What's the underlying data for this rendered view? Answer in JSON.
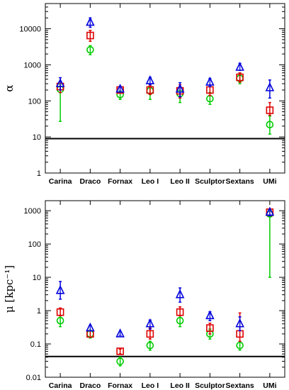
{
  "chart_data": [
    {
      "type": "scatter",
      "ylabel": "α",
      "yscale": "log",
      "ylim": [
        1,
        50000
      ],
      "yticks": [
        "1",
        "10",
        "100",
        "1000",
        "10000"
      ],
      "categories": [
        "Carina",
        "Draco",
        "Fornax",
        "Leo I",
        "Leo II",
        "Sculptor",
        "Sextans",
        "UMi"
      ],
      "reference_line": 9,
      "series": [
        {
          "marker": "triangle",
          "color": "#0000dd",
          "values": [
            300,
            15000,
            210,
            360,
            210,
            330,
            850,
            230
          ],
          "err_low": [
            200,
            11000,
            180,
            280,
            130,
            250,
            700,
            120
          ],
          "err_high": [
            440,
            20000,
            250,
            450,
            320,
            420,
            1100,
            380
          ]
        },
        {
          "marker": "square",
          "color": "#dd0000",
          "values": [
            250,
            6500,
            200,
            200,
            190,
            200,
            450,
            55
          ],
          "err_low": [
            170,
            4500,
            170,
            150,
            120,
            140,
            330,
            40
          ],
          "err_high": [
            330,
            9000,
            235,
            260,
            280,
            280,
            600,
            90
          ]
        },
        {
          "marker": "circle",
          "color": "#00cc00",
          "values": [
            210,
            2600,
            150,
            190,
            160,
            115,
            420,
            22
          ],
          "err_low": [
            27,
            1900,
            110,
            110,
            90,
            80,
            300,
            12
          ],
          "err_high": [
            290,
            3400,
            190,
            260,
            230,
            170,
            560,
            38
          ]
        }
      ]
    },
    {
      "type": "scatter",
      "ylabel": "μ  [kpc⁻¹]",
      "yscale": "log",
      "ylim": [
        0.01,
        2000
      ],
      "yticks": [
        "0.01",
        "0.1",
        "1",
        "10",
        "100",
        "1000"
      ],
      "categories": [
        "Carina",
        "Draco",
        "Fornax",
        "Leo I",
        "Leo II",
        "Sculptor",
        "Sextans",
        "UMi"
      ],
      "reference_line": 0.042,
      "series": [
        {
          "marker": "triangle",
          "color": "#0000dd",
          "values": [
            4,
            0.3,
            0.2,
            0.4,
            3,
            0.7,
            0.4,
            900
          ],
          "err_low": [
            2.2,
            0.25,
            0.18,
            0.28,
            1.8,
            0.5,
            0.25,
            700
          ],
          "err_high": [
            7.5,
            0.36,
            0.23,
            0.52,
            4.8,
            0.92,
            0.65,
            1050
          ]
        },
        {
          "marker": "square",
          "color": "#dd0000",
          "values": [
            0.9,
            0.2,
            0.06,
            0.2,
            0.9,
            0.3,
            0.2,
            900
          ],
          "err_low": [
            0.7,
            0.16,
            0.05,
            0.14,
            0.7,
            0.2,
            0.12,
            700
          ],
          "err_high": [
            1.2,
            0.25,
            0.07,
            0.3,
            1.3,
            0.42,
            0.85,
            1100
          ]
        },
        {
          "marker": "circle",
          "color": "#00cc00",
          "values": [
            0.5,
            0.2,
            0.03,
            0.09,
            0.5,
            0.2,
            0.09,
            800
          ],
          "err_low": [
            0.33,
            0.15,
            0.022,
            0.065,
            0.33,
            0.14,
            0.065,
            10
          ],
          "err_high": [
            0.7,
            0.26,
            0.04,
            0.12,
            0.72,
            0.28,
            0.12,
            950
          ]
        }
      ]
    }
  ]
}
